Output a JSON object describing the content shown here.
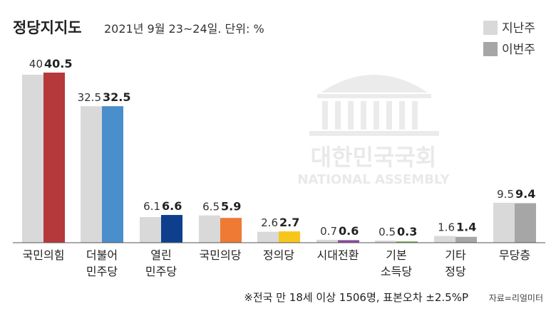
{
  "header": {
    "title": "정당지지도",
    "subtitle": "2021년 9월 23~24일. 단위: %"
  },
  "legend": [
    {
      "label": "지난주",
      "color": "#d9d9d9"
    },
    {
      "label": "이번주",
      "color": "#a6a6a6"
    }
  ],
  "watermark": {
    "icon": "national-assembly-building-icon",
    "line1": "대한민국국회",
    "line2": "NATIONAL ASSEMBLY"
  },
  "chart_data": {
    "type": "bar",
    "categories": [
      [
        "국민의힘"
      ],
      [
        "더불어",
        "민주당"
      ],
      [
        "열린",
        "민주당"
      ],
      [
        "국민의당"
      ],
      [
        "정의당"
      ],
      [
        "시대전환"
      ],
      [
        "기본",
        "소득당"
      ],
      [
        "기타",
        "정당"
      ],
      [
        "무당층"
      ]
    ],
    "series": [
      {
        "name": "지난주",
        "values": [
          40,
          32.5,
          6.1,
          6.5,
          2.6,
          0.7,
          0.5,
          1.6,
          9.5
        ],
        "labels": [
          "40",
          "32.5",
          "6.1",
          "6.5",
          "2.6",
          "0.7",
          "0.5",
          "1.6",
          "9.5"
        ]
      },
      {
        "name": "이번주",
        "values": [
          40.5,
          32.5,
          6.6,
          5.9,
          2.7,
          0.6,
          0.3,
          1.4,
          9.4
        ],
        "labels": [
          "40.5",
          "32.5",
          "6.6",
          "5.9",
          "2.7",
          "0.6",
          "0.3",
          "1.4",
          "9.4"
        ]
      }
    ],
    "prev_color": "#d9d9d9",
    "current_colors": [
      "#b5393b",
      "#4a8ecb",
      "#0d3f8c",
      "#ee7a34",
      "#f7c61c",
      "#8c4a9e",
      "#6fae4a",
      "#a6a6a6",
      "#a6a6a6"
    ],
    "ylim": [
      0,
      40.5
    ]
  },
  "footer": {
    "note": "※전국 만 18세 이상 1506명, 표본오차 ±2.5%P",
    "source": "자료=리얼미터"
  }
}
